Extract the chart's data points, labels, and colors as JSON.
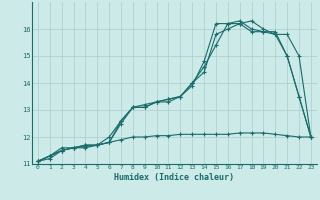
{
  "xlabel": "Humidex (Indice chaleur)",
  "background_color": "#cceae7",
  "grid_color": "#aacccc",
  "line_color": "#1a6b6b",
  "xlim": [
    -0.5,
    23.5
  ],
  "ylim": [
    11,
    17
  ],
  "xticks": [
    0,
    1,
    2,
    3,
    4,
    5,
    6,
    7,
    8,
    9,
    10,
    11,
    12,
    13,
    14,
    15,
    16,
    17,
    18,
    19,
    20,
    21,
    22,
    23
  ],
  "yticks": [
    11,
    12,
    13,
    14,
    15,
    16
  ],
  "series1_x": [
    0,
    1,
    2,
    3,
    4,
    5,
    6,
    7,
    8,
    9,
    10,
    11,
    12,
    13,
    14,
    15,
    16,
    17,
    18,
    19,
    20,
    21,
    22,
    23
  ],
  "series1_y": [
    11.1,
    11.3,
    11.5,
    11.6,
    11.6,
    11.7,
    11.8,
    12.6,
    13.1,
    13.1,
    13.3,
    13.3,
    13.5,
    13.9,
    14.8,
    16.2,
    16.2,
    16.3,
    16.0,
    15.9,
    15.8,
    15.0,
    13.5,
    12.0
  ],
  "series2_x": [
    0,
    1,
    2,
    3,
    4,
    5,
    6,
    7,
    8,
    9,
    10,
    11,
    12,
    13,
    14,
    15,
    16,
    17,
    18,
    19,
    20,
    21,
    22,
    23
  ],
  "series2_y": [
    11.1,
    11.3,
    11.6,
    11.6,
    11.7,
    11.7,
    12.0,
    12.6,
    13.1,
    13.2,
    13.3,
    13.4,
    13.5,
    14.0,
    14.4,
    15.8,
    16.0,
    16.2,
    15.9,
    15.9,
    15.9,
    15.0,
    13.5,
    12.0
  ],
  "series3_x": [
    0,
    1,
    2,
    3,
    4,
    5,
    6,
    7,
    8,
    9,
    10,
    11,
    12,
    13,
    14,
    15,
    16,
    17,
    18,
    19,
    20,
    21,
    22,
    23
  ],
  "series3_y": [
    11.1,
    11.3,
    11.5,
    11.6,
    11.7,
    11.7,
    11.8,
    12.5,
    13.1,
    13.1,
    13.3,
    13.4,
    13.5,
    14.0,
    14.6,
    15.4,
    16.2,
    16.2,
    16.3,
    16.0,
    15.8,
    15.8,
    15.0,
    12.0
  ],
  "series4_x": [
    0,
    1,
    2,
    3,
    4,
    5,
    6,
    7,
    8,
    9,
    10,
    11,
    12,
    13,
    14,
    15,
    16,
    17,
    18,
    19,
    20,
    21,
    22,
    23
  ],
  "series4_y": [
    11.1,
    11.2,
    11.5,
    11.6,
    11.65,
    11.7,
    11.8,
    11.9,
    12.0,
    12.0,
    12.05,
    12.05,
    12.1,
    12.1,
    12.1,
    12.1,
    12.1,
    12.15,
    12.15,
    12.15,
    12.1,
    12.05,
    12.0,
    12.0
  ]
}
